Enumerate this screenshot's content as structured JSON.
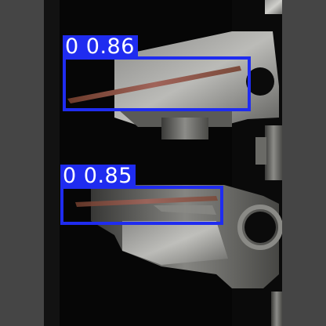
{
  "image": {
    "description_free": true,
    "background_color": "#454545",
    "photo_color": "#050505"
  },
  "detections": [
    {
      "label": "0 0.86",
      "class_id": "0",
      "confidence": 0.86,
      "color": "#1f2cf0"
    },
    {
      "label": "0 0.85",
      "class_id": "0",
      "confidence": 0.85,
      "color": "#1f2cf0"
    }
  ]
}
